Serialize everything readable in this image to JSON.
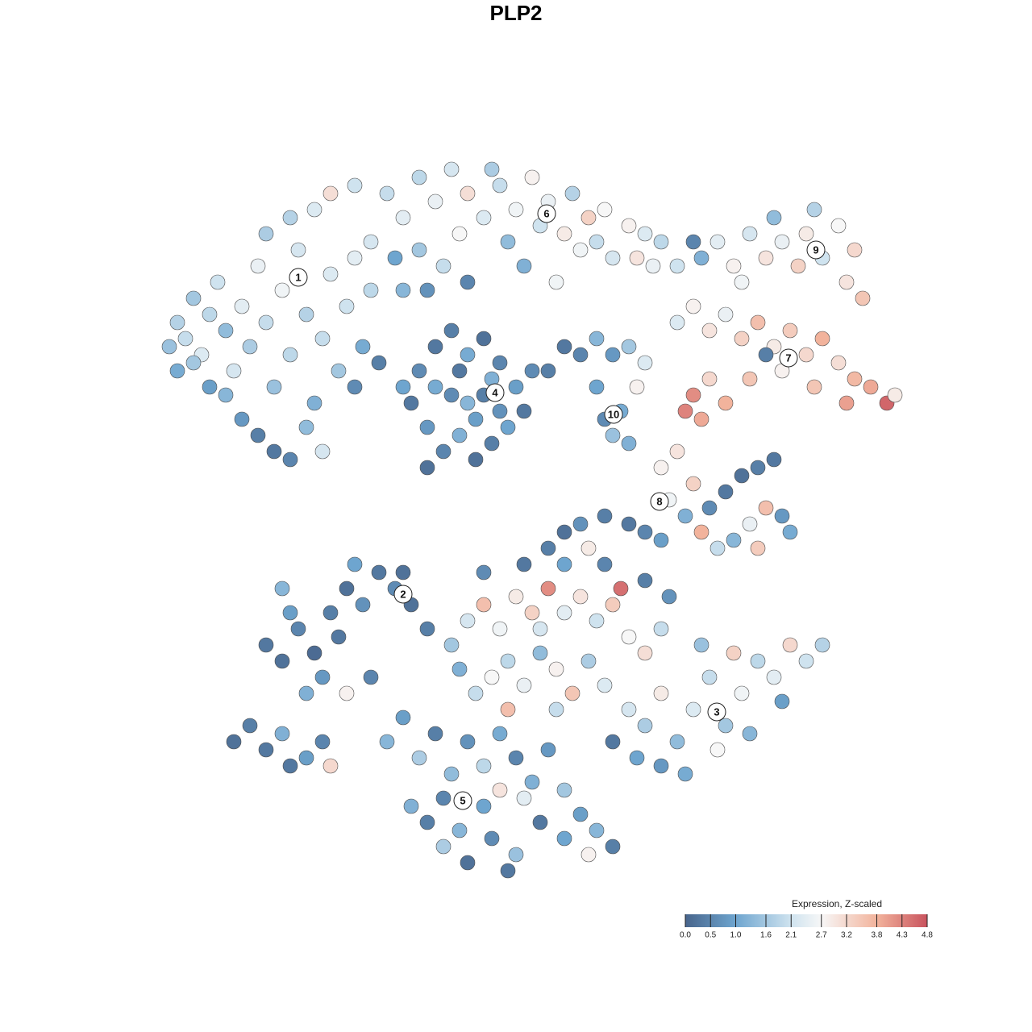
{
  "chart_data": {
    "type": "scatter",
    "title": "PLP2",
    "xlim": [
      0,
      128
    ],
    "ylim": [
      0,
      128
    ],
    "points": [
      [
        22,
        88,
        1.8
      ],
      [
        23,
        86,
        2.0
      ],
      [
        24,
        91,
        1.6
      ],
      [
        25,
        84,
        2.3
      ],
      [
        26,
        89,
        1.9
      ],
      [
        27,
        93,
        2.1
      ],
      [
        28,
        87,
        1.4
      ],
      [
        29,
        82,
        2.2
      ],
      [
        30,
        90,
        2.4
      ],
      [
        31,
        85,
        1.7
      ],
      [
        32,
        95,
        2.5
      ],
      [
        33,
        88,
        2.0
      ],
      [
        34,
        80,
        1.5
      ],
      [
        35,
        92,
        2.6
      ],
      [
        36,
        84,
        1.9
      ],
      [
        37,
        97,
        2.2
      ],
      [
        38,
        89,
        1.8
      ],
      [
        39,
        78,
        1.2
      ],
      [
        40,
        86,
        2.0
      ],
      [
        41,
        94,
        2.3
      ],
      [
        42,
        82,
        1.6
      ],
      [
        43,
        90,
        2.1
      ],
      [
        44,
        96,
        2.4
      ],
      [
        45,
        85,
        1.1
      ],
      [
        46,
        92,
        1.9
      ],
      [
        30,
        76,
        0.8
      ],
      [
        32,
        74,
        0.4
      ],
      [
        34,
        72,
        0.3
      ],
      [
        36,
        71,
        0.5
      ],
      [
        38,
        75,
        1.4
      ],
      [
        40,
        72,
        2.2
      ],
      [
        28,
        79,
        1.3
      ],
      [
        26,
        80,
        0.9
      ],
      [
        24,
        83,
        1.6
      ],
      [
        22,
        82,
        1.1
      ],
      [
        21,
        85,
        1.5
      ],
      [
        33,
        99,
        1.7
      ],
      [
        36,
        101,
        1.8
      ],
      [
        44,
        80,
        0.6
      ],
      [
        47,
        83,
        0.4
      ],
      [
        48,
        104,
        2.0
      ],
      [
        50,
        101,
        2.4
      ],
      [
        52,
        106,
        1.9
      ],
      [
        54,
        103,
        2.5
      ],
      [
        56,
        107,
        2.2
      ],
      [
        57,
        99,
        2.7
      ],
      [
        58,
        104,
        3.1
      ],
      [
        60,
        101,
        2.3
      ],
      [
        62,
        105,
        2.0
      ],
      [
        63,
        98,
        1.4
      ],
      [
        64,
        102,
        2.6
      ],
      [
        66,
        106,
        2.8
      ],
      [
        67,
        100,
        2.1
      ],
      [
        68,
        103,
        2.5
      ],
      [
        70,
        99,
        2.9
      ],
      [
        71,
        104,
        1.8
      ],
      [
        72,
        97,
        2.6
      ],
      [
        73,
        101,
        3.3
      ],
      [
        74,
        98,
        2.0
      ],
      [
        75,
        102,
        2.7
      ],
      [
        76,
        96,
        2.2
      ],
      [
        78,
        100,
        2.8
      ],
      [
        79,
        96,
        3.0
      ],
      [
        80,
        99,
        2.3
      ],
      [
        81,
        95,
        2.5
      ],
      [
        82,
        98,
        1.9
      ],
      [
        84,
        95,
        2.1
      ],
      [
        46,
        98,
        2.2
      ],
      [
        49,
        96,
        1.0
      ],
      [
        52,
        97,
        1.6
      ],
      [
        55,
        95,
        2.0
      ],
      [
        44,
        105,
        2.1
      ],
      [
        41,
        104,
        3.1
      ],
      [
        39,
        102,
        2.3
      ],
      [
        61,
        107,
        1.7
      ],
      [
        65,
        95,
        1.2
      ],
      [
        69,
        93,
        2.6
      ],
      [
        58,
        93,
        0.5
      ],
      [
        53,
        92,
        0.7
      ],
      [
        50,
        92,
        1.3
      ],
      [
        52,
        82,
        0.6
      ],
      [
        54,
        85,
        0.3
      ],
      [
        56,
        87,
        0.4
      ],
      [
        58,
        84,
        1.1
      ],
      [
        60,
        86,
        0.2
      ],
      [
        62,
        83,
        0.5
      ],
      [
        64,
        80,
        0.9
      ],
      [
        65,
        77,
        0.3
      ],
      [
        63,
        75,
        1.0
      ],
      [
        61,
        73,
        0.4
      ],
      [
        59,
        71,
        0.2
      ],
      [
        57,
        74,
        1.2
      ],
      [
        55,
        72,
        0.5
      ],
      [
        53,
        75,
        0.8
      ],
      [
        51,
        78,
        0.3
      ],
      [
        50,
        80,
        1.0
      ],
      [
        56,
        79,
        0.6
      ],
      [
        58,
        78,
        1.3
      ],
      [
        60,
        79,
        0.4
      ],
      [
        62,
        77,
        0.7
      ],
      [
        54,
        80,
        1.1
      ],
      [
        57,
        82,
        0.3
      ],
      [
        59,
        76,
        0.9
      ],
      [
        61,
        81,
        1.2
      ],
      [
        53,
        70,
        0.2
      ],
      [
        66,
        82,
        0.6
      ],
      [
        72,
        84,
        0.5
      ],
      [
        74,
        86,
        1.3
      ],
      [
        76,
        84,
        0.8
      ],
      [
        78,
        85,
        1.6
      ],
      [
        80,
        83,
        2.3
      ],
      [
        79,
        80,
        2.8
      ],
      [
        77,
        77,
        1.1
      ],
      [
        75,
        76,
        0.6
      ],
      [
        76,
        74,
        1.5
      ],
      [
        78,
        73,
        1.2
      ],
      [
        74,
        80,
        1.0
      ],
      [
        70,
        85,
        0.3
      ],
      [
        68,
        82,
        0.4
      ],
      [
        87,
        96,
        1.2
      ],
      [
        89,
        98,
        2.4
      ],
      [
        91,
        95,
        2.8
      ],
      [
        93,
        99,
        2.2
      ],
      [
        95,
        96,
        3.0
      ],
      [
        97,
        98,
        2.5
      ],
      [
        99,
        95,
        3.3
      ],
      [
        100,
        99,
        2.9
      ],
      [
        102,
        96,
        2.1
      ],
      [
        104,
        100,
        2.7
      ],
      [
        106,
        97,
        3.2
      ],
      [
        101,
        102,
        1.8
      ],
      [
        96,
        101,
        1.4
      ],
      [
        92,
        93,
        2.6
      ],
      [
        105,
        93,
        3.0
      ],
      [
        107,
        91,
        3.5
      ],
      [
        86,
        98,
        0.5
      ],
      [
        84,
        88,
        2.3
      ],
      [
        86,
        90,
        2.8
      ],
      [
        88,
        87,
        3.0
      ],
      [
        90,
        89,
        2.5
      ],
      [
        92,
        86,
        3.3
      ],
      [
        94,
        88,
        3.6
      ],
      [
        96,
        85,
        2.9
      ],
      [
        98,
        87,
        3.4
      ],
      [
        100,
        84,
        3.2
      ],
      [
        102,
        86,
        3.8
      ],
      [
        104,
        83,
        3.1
      ],
      [
        106,
        81,
        3.7
      ],
      [
        108,
        80,
        3.9
      ],
      [
        110,
        78,
        4.6
      ],
      [
        111,
        79,
        2.9
      ],
      [
        105,
        78,
        4.0
      ],
      [
        101,
        80,
        3.5
      ],
      [
        97,
        82,
        2.8
      ],
      [
        93,
        81,
        3.5
      ],
      [
        88,
        81,
        3.2
      ],
      [
        86,
        79,
        4.2
      ],
      [
        85,
        77,
        4.3
      ],
      [
        87,
        76,
        3.9
      ],
      [
        90,
        78,
        3.8
      ],
      [
        95,
        84,
        0.4
      ],
      [
        82,
        70,
        2.8
      ],
      [
        84,
        72,
        3.0
      ],
      [
        86,
        68,
        3.3
      ],
      [
        83,
        66,
        2.6
      ],
      [
        85,
        64,
        1.2
      ],
      [
        88,
        65,
        0.6
      ],
      [
        90,
        67,
        0.3
      ],
      [
        92,
        69,
        0.2
      ],
      [
        94,
        70,
        0.4
      ],
      [
        96,
        71,
        0.3
      ],
      [
        93,
        63,
        2.5
      ],
      [
        95,
        65,
        3.6
      ],
      [
        97,
        64,
        0.8
      ],
      [
        91,
        61,
        1.3
      ],
      [
        89,
        60,
        2.0
      ],
      [
        94,
        60,
        3.4
      ],
      [
        98,
        62,
        1.1
      ],
      [
        87,
        62,
        3.8
      ],
      [
        82,
        61,
        0.9
      ],
      [
        80,
        62,
        0.5
      ],
      [
        78,
        63,
        0.3
      ],
      [
        75,
        64,
        0.4
      ],
      [
        72,
        63,
        0.7
      ],
      [
        70,
        62,
        0.2
      ],
      [
        68,
        60,
        0.4
      ],
      [
        73,
        60,
        2.9
      ],
      [
        33,
        48,
        0.3
      ],
      [
        35,
        46,
        0.2
      ],
      [
        37,
        50,
        0.5
      ],
      [
        39,
        47,
        0.1
      ],
      [
        41,
        52,
        0.4
      ],
      [
        43,
        55,
        0.2
      ],
      [
        45,
        53,
        0.7
      ],
      [
        47,
        57,
        0.3
      ],
      [
        49,
        55,
        0.6
      ],
      [
        51,
        53,
        0.2
      ],
      [
        53,
        50,
        0.4
      ],
      [
        40,
        44,
        0.8
      ],
      [
        38,
        42,
        1.2
      ],
      [
        36,
        52,
        0.9
      ],
      [
        42,
        49,
        0.3
      ],
      [
        44,
        58,
        1.0
      ],
      [
        35,
        55,
        1.3
      ],
      [
        46,
        44,
        0.5
      ],
      [
        43,
        42,
        2.8
      ],
      [
        50,
        57,
        0.2
      ],
      [
        29,
        36,
        0.2
      ],
      [
        31,
        38,
        0.4
      ],
      [
        33,
        35,
        0.3
      ],
      [
        35,
        37,
        1.2
      ],
      [
        36,
        33,
        0.3
      ],
      [
        38,
        34,
        0.9
      ],
      [
        40,
        36,
        0.5
      ],
      [
        41,
        33,
        3.2
      ],
      [
        56,
        48,
        1.6
      ],
      [
        58,
        51,
        2.2
      ],
      [
        60,
        53,
        3.6
      ],
      [
        62,
        50,
        2.6
      ],
      [
        64,
        54,
        2.9
      ],
      [
        66,
        52,
        3.3
      ],
      [
        68,
        55,
        4.2
      ],
      [
        70,
        52,
        2.4
      ],
      [
        72,
        54,
        3.0
      ],
      [
        74,
        51,
        2.1
      ],
      [
        76,
        53,
        3.4
      ],
      [
        77,
        55,
        4.5
      ],
      [
        78,
        49,
        2.7
      ],
      [
        80,
        47,
        3.1
      ],
      [
        82,
        50,
        2.0
      ],
      [
        57,
        45,
        1.2
      ],
      [
        59,
        42,
        2.0
      ],
      [
        61,
        44,
        2.7
      ],
      [
        63,
        46,
        1.9
      ],
      [
        65,
        43,
        2.5
      ],
      [
        67,
        47,
        1.4
      ],
      [
        69,
        45,
        2.8
      ],
      [
        71,
        42,
        3.5
      ],
      [
        73,
        46,
        1.7
      ],
      [
        75,
        43,
        2.3
      ],
      [
        60,
        57,
        0.6
      ],
      [
        65,
        58,
        0.3
      ],
      [
        70,
        58,
        1.0
      ],
      [
        75,
        58,
        0.5
      ],
      [
        80,
        56,
        0.4
      ],
      [
        83,
        54,
        0.7
      ],
      [
        67,
        50,
        2.2
      ],
      [
        63,
        40,
        3.6
      ],
      [
        69,
        40,
        2.0
      ],
      [
        78,
        40,
        2.2
      ],
      [
        80,
        38,
        1.7
      ],
      [
        82,
        42,
        2.9
      ],
      [
        84,
        36,
        1.4
      ],
      [
        86,
        40,
        2.3
      ],
      [
        88,
        44,
        2.0
      ],
      [
        90,
        38,
        1.6
      ],
      [
        92,
        42,
        2.6
      ],
      [
        94,
        46,
        1.9
      ],
      [
        96,
        44,
        2.4
      ],
      [
        98,
        48,
        3.2
      ],
      [
        100,
        46,
        2.1
      ],
      [
        102,
        48,
        1.8
      ],
      [
        87,
        48,
        1.5
      ],
      [
        91,
        47,
        3.3
      ],
      [
        79,
        34,
        1.0
      ],
      [
        82,
        33,
        0.8
      ],
      [
        85,
        32,
        1.1
      ],
      [
        89,
        35,
        2.7
      ],
      [
        93,
        37,
        1.3
      ],
      [
        97,
        41,
        0.9
      ],
      [
        76,
        36,
        0.3
      ],
      [
        48,
        36,
        1.3
      ],
      [
        50,
        39,
        0.9
      ],
      [
        52,
        34,
        1.7
      ],
      [
        54,
        37,
        0.4
      ],
      [
        56,
        32,
        1.4
      ],
      [
        58,
        36,
        0.7
      ],
      [
        60,
        33,
        1.9
      ],
      [
        62,
        37,
        1.1
      ],
      [
        64,
        34,
        0.5
      ],
      [
        66,
        31,
        1.2
      ],
      [
        68,
        35,
        0.8
      ],
      [
        70,
        30,
        1.6
      ],
      [
        72,
        27,
        0.9
      ],
      [
        74,
        25,
        1.3
      ],
      [
        76,
        23,
        0.4
      ],
      [
        73,
        22,
        2.8
      ],
      [
        70,
        24,
        1.0
      ],
      [
        67,
        26,
        0.3
      ],
      [
        64,
        22,
        1.5
      ],
      [
        61,
        24,
        0.6
      ],
      [
        58,
        21,
        0.2
      ],
      [
        55,
        23,
        1.7
      ],
      [
        53,
        26,
        0.4
      ],
      [
        51,
        28,
        1.2
      ],
      [
        55,
        29,
        0.5
      ],
      [
        60,
        28,
        1.0
      ],
      [
        65,
        29,
        2.4
      ],
      [
        62,
        30,
        3.0
      ],
      [
        57,
        25,
        1.3
      ],
      [
        63,
        20,
        0.3
      ]
    ],
    "cluster_labels": [
      {
        "label": "1",
        "x": 37,
        "y": 93.6
      },
      {
        "label": "2",
        "x": 50,
        "y": 54.3
      },
      {
        "label": "3",
        "x": 88.9,
        "y": 39.7
      },
      {
        "label": "4",
        "x": 61.4,
        "y": 79.3
      },
      {
        "label": "5",
        "x": 57.4,
        "y": 28.7
      },
      {
        "label": "6",
        "x": 67.8,
        "y": 101.5
      },
      {
        "label": "7",
        "x": 97.8,
        "y": 83.6
      },
      {
        "label": "8",
        "x": 81.8,
        "y": 65.8
      },
      {
        "label": "9",
        "x": 101.2,
        "y": 97
      },
      {
        "label": "10",
        "x": 76.1,
        "y": 76.6
      }
    ],
    "colorbar": {
      "title": "Expression, Z-scaled",
      "clim": [
        0,
        4.8
      ],
      "ticks": [
        {
          "value": 0,
          "label": "0.0"
        },
        0.5,
        {
          "value": 1,
          "label": "1.0"
        },
        1.6,
        2.1,
        2.7,
        3.2,
        3.8,
        4.3,
        4.8
      ],
      "stops": [
        0,
        1,
        2.1,
        2.7,
        3.8,
        4.8
      ],
      "colors": [
        "#48658c",
        "#6ea5cf",
        "#cfe3ef",
        "#f7f7f7",
        "#f2b39c",
        "#c9535e"
      ]
    }
  }
}
